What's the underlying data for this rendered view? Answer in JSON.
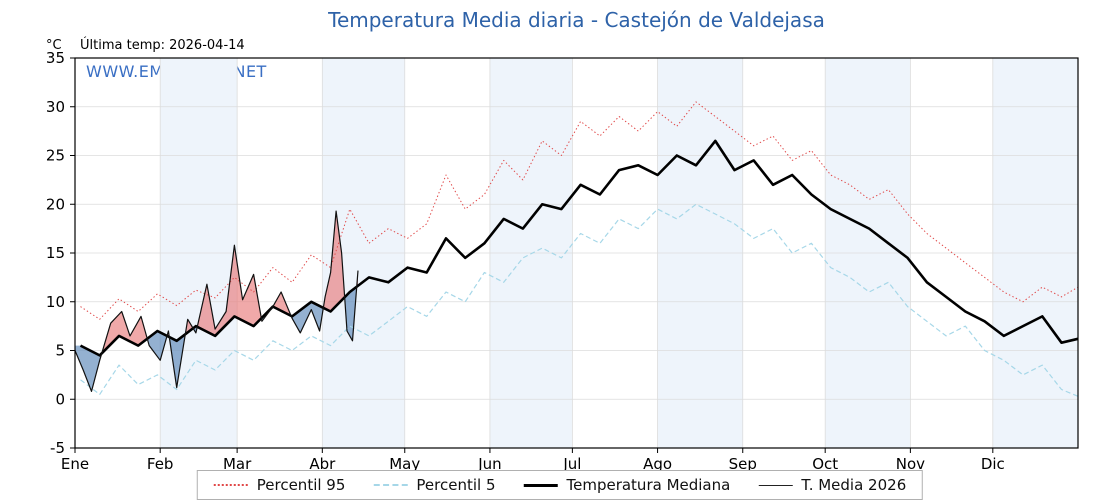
{
  "title": "Temperatura Media diaria - Castejón de Valdejasa",
  "watermark": "WWW.EMBALSES.NET",
  "header": {
    "unit": "°C",
    "last_temp": "Última temp: 2026-04-14"
  },
  "colors": {
    "title": "#2e62a8",
    "watermark": "#3a6fc4",
    "p95": "#e04848",
    "p5": "#a6d7e8",
    "median": "#000000",
    "t2026": "#111111",
    "fill_above": "#e87b7b",
    "fill_below": "#5b87b8",
    "band": "#eef4fb",
    "grid": "#dcdcdc"
  },
  "chart_data": {
    "type": "line",
    "title": "Temperatura Media diaria - Castejón de Valdejasa",
    "xlabel": "",
    "ylabel": "°C",
    "ylim": [
      -5,
      35
    ],
    "xlim": [
      1,
      366
    ],
    "grid": true,
    "legend_position": "bottom",
    "y_ticks": [
      -5,
      0,
      5,
      10,
      15,
      20,
      25,
      30,
      35
    ],
    "month_labels": [
      "Ene",
      "Feb",
      "Mar",
      "Abr",
      "May",
      "Jun",
      "Jul",
      "Ago",
      "Sep",
      "Oct",
      "Nov",
      "Dic"
    ],
    "month_starts": [
      1,
      32,
      60,
      91,
      121,
      152,
      182,
      213,
      244,
      274,
      305,
      335,
      366
    ],
    "series": [
      {
        "name": "Percentil 95",
        "style": "dotted",
        "color": "#e04848",
        "width": 1,
        "x": [
          3,
          10,
          17,
          24,
          31,
          38,
          45,
          52,
          59,
          66,
          73,
          80,
          87,
          94,
          101,
          108,
          115,
          122,
          129,
          136,
          143,
          150,
          157,
          164,
          171,
          178,
          185,
          192,
          199,
          206,
          213,
          220,
          227,
          234,
          241,
          248,
          255,
          262,
          269,
          276,
          283,
          290,
          297,
          304,
          311,
          318,
          325,
          332,
          339,
          346,
          353,
          360,
          366
        ],
        "y": [
          9.5,
          8.2,
          10.3,
          9.0,
          10.8,
          9.6,
          11.2,
          10.4,
          12.5,
          11.0,
          13.5,
          12.0,
          14.8,
          13.5,
          19.5,
          16.0,
          17.5,
          16.5,
          18.0,
          23.0,
          19.5,
          21.0,
          24.5,
          22.5,
          26.5,
          25.0,
          28.5,
          27.0,
          29.0,
          27.5,
          29.5,
          28.0,
          30.5,
          29.0,
          27.5,
          26.0,
          27.0,
          24.5,
          25.5,
          23.0,
          22.0,
          20.5,
          21.5,
          19.0,
          17.0,
          15.5,
          14.0,
          12.5,
          11.0,
          10.0,
          11.5,
          10.5,
          11.5
        ]
      },
      {
        "name": "Percentil 5",
        "style": "dashed",
        "color": "#a6d7e8",
        "width": 1.2,
        "x": [
          3,
          10,
          17,
          24,
          31,
          38,
          45,
          52,
          59,
          66,
          73,
          80,
          87,
          94,
          101,
          108,
          115,
          122,
          129,
          136,
          143,
          150,
          157,
          164,
          171,
          178,
          185,
          192,
          199,
          206,
          213,
          220,
          227,
          234,
          241,
          248,
          255,
          262,
          269,
          276,
          283,
          290,
          297,
          304,
          311,
          318,
          325,
          332,
          339,
          346,
          353,
          360,
          366
        ],
        "y": [
          2.0,
          0.5,
          3.5,
          1.5,
          2.5,
          1.0,
          4.0,
          3.0,
          5.0,
          4.0,
          6.0,
          5.0,
          6.5,
          5.5,
          7.5,
          6.5,
          8.0,
          9.5,
          8.5,
          11.0,
          10.0,
          13.0,
          12.0,
          14.5,
          15.5,
          14.5,
          17.0,
          16.0,
          18.5,
          17.5,
          19.5,
          18.5,
          20.0,
          19.0,
          18.0,
          16.5,
          17.5,
          15.0,
          16.0,
          13.5,
          12.5,
          11.0,
          12.0,
          9.5,
          8.0,
          6.5,
          7.5,
          5.0,
          4.0,
          2.5,
          3.5,
          1.0,
          0.3
        ]
      },
      {
        "name": "Temperatura Mediana",
        "style": "solid",
        "color": "#000000",
        "width": 2.6,
        "x": [
          3,
          10,
          17,
          24,
          31,
          38,
          45,
          52,
          59,
          66,
          73,
          80,
          87,
          94,
          101,
          108,
          115,
          122,
          129,
          136,
          143,
          150,
          157,
          164,
          171,
          178,
          185,
          192,
          199,
          206,
          213,
          220,
          227,
          234,
          241,
          248,
          255,
          262,
          269,
          276,
          283,
          290,
          297,
          304,
          311,
          318,
          325,
          332,
          339,
          346,
          353,
          360,
          366
        ],
        "y": [
          5.5,
          4.5,
          6.5,
          5.5,
          7.0,
          6.0,
          7.5,
          6.5,
          8.5,
          7.5,
          9.5,
          8.5,
          10.0,
          9.0,
          11.0,
          12.5,
          12.0,
          13.5,
          13.0,
          16.5,
          14.5,
          16.0,
          18.5,
          17.5,
          20.0,
          19.5,
          22.0,
          21.0,
          23.5,
          24.0,
          23.0,
          25.0,
          24.0,
          26.5,
          23.5,
          24.5,
          22.0,
          23.0,
          21.0,
          19.5,
          18.5,
          17.5,
          16.0,
          14.5,
          12.0,
          10.5,
          9.0,
          8.0,
          6.5,
          7.5,
          8.5,
          5.8,
          6.2
        ]
      },
      {
        "name": "T. Media 2026",
        "style": "solid",
        "color": "#111111",
        "width": 1.2,
        "x": [
          1,
          4,
          7,
          10,
          14,
          18,
          21,
          25,
          28,
          32,
          35,
          38,
          42,
          45,
          49,
          52,
          56,
          59,
          62,
          66,
          69,
          73,
          76,
          80,
          83,
          87,
          90,
          92,
          94,
          96,
          98,
          100,
          102,
          104
        ],
        "y": [
          5.0,
          3.0,
          0.8,
          4.0,
          7.8,
          9.0,
          6.5,
          8.5,
          5.5,
          4.0,
          7.0,
          1.2,
          8.2,
          6.8,
          11.8,
          7.2,
          9.0,
          15.8,
          10.2,
          12.8,
          8.0,
          9.5,
          11.0,
          8.3,
          6.8,
          9.2,
          7.0,
          10.5,
          13.0,
          19.3,
          15.0,
          7.0,
          6.0,
          13.2
        ]
      }
    ]
  }
}
